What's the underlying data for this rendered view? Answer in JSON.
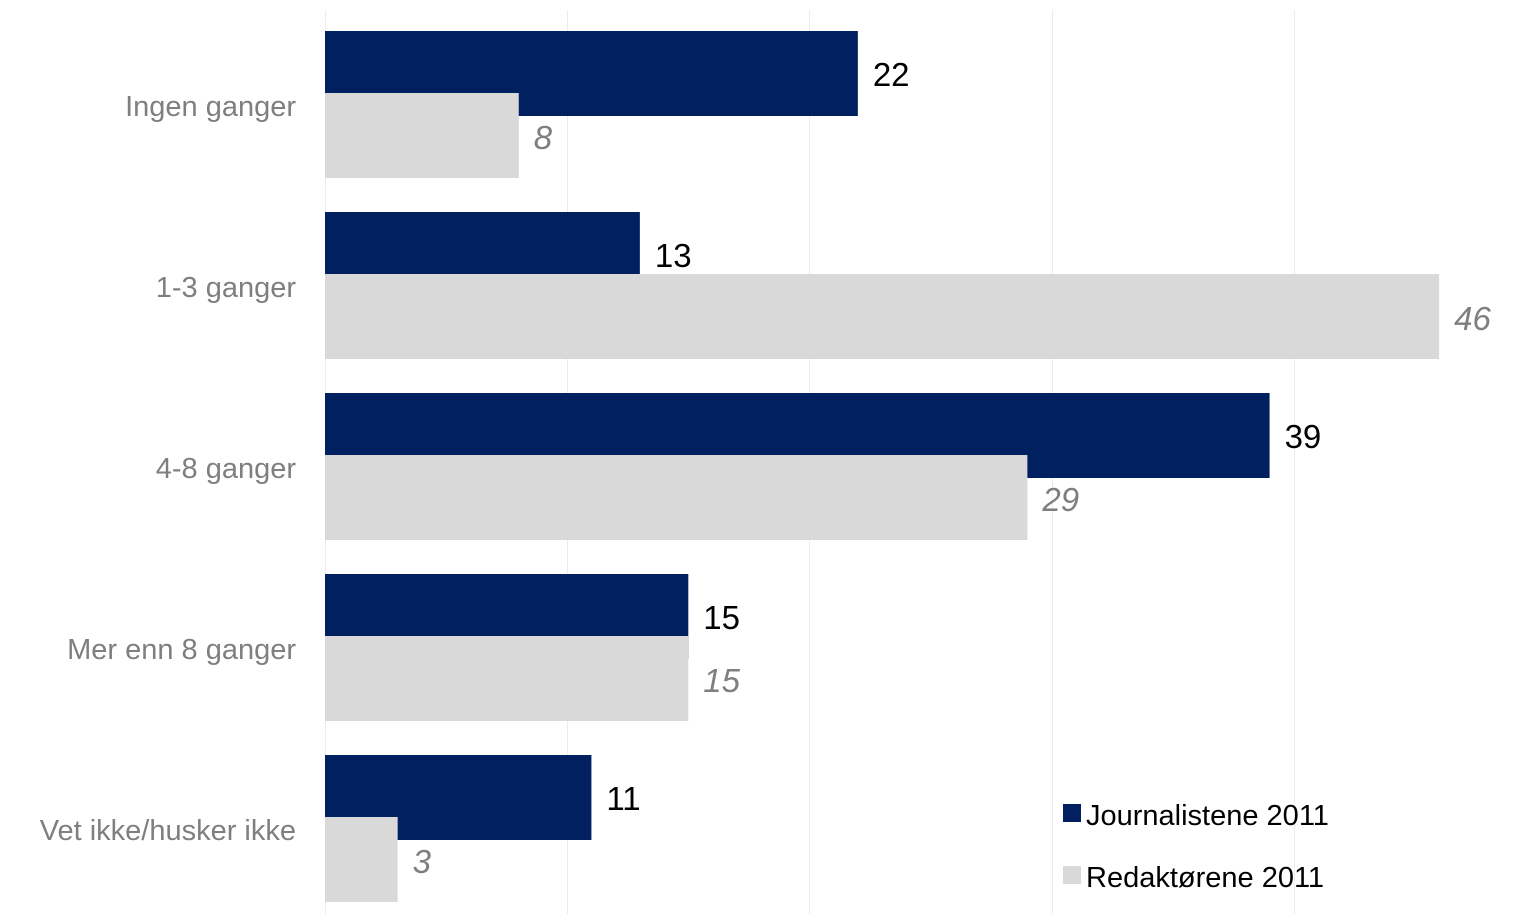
{
  "chart_data": {
    "type": "bar",
    "orientation": "horizontal",
    "categories": [
      "Ingen ganger",
      "1-3 ganger",
      "4-8 ganger",
      "Mer enn 8 ganger",
      "Vet ikke/husker ikke"
    ],
    "series": [
      {
        "name": "Journalistene 2011",
        "values": [
          22,
          13,
          39,
          15,
          11
        ],
        "color": "#002060",
        "label_style": "normal"
      },
      {
        "name": "Redaktørene 2011",
        "values": [
          8,
          46,
          29,
          15,
          3
        ],
        "color": "#d9d9d9",
        "label_style": "italic"
      }
    ],
    "title": "",
    "xlabel": "",
    "ylabel": "",
    "xlim": [
      0,
      50
    ],
    "grid": true,
    "legend_position": "bottom-right",
    "data_labels": true
  }
}
